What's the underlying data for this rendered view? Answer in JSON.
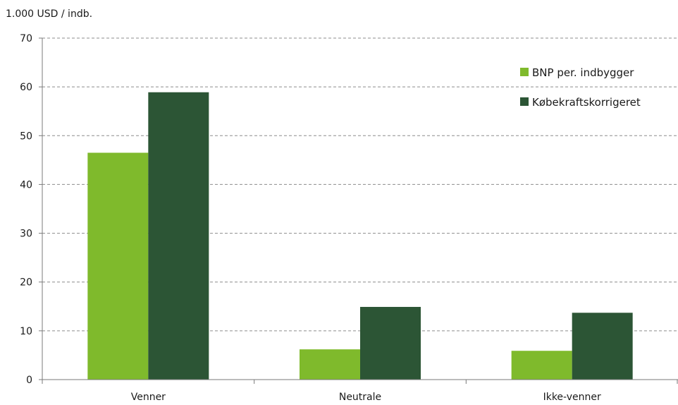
{
  "chart_data": {
    "type": "bar",
    "title": "",
    "ylabel": "1.000 USD / indb.",
    "xlabel": "",
    "categories": [
      "Venner",
      "Neutrale",
      "Ikke-venner"
    ],
    "series": [
      {
        "name": "BNP per. indbygger",
        "values": [
          46.5,
          6.2,
          5.9
        ],
        "color": "#7fba2c"
      },
      {
        "name": "Købekraftskorrigeret",
        "values": [
          58.9,
          14.9,
          13.7
        ],
        "color": "#2c5535"
      }
    ],
    "ylim": [
      0,
      70
    ],
    "yticks": [
      0,
      10,
      20,
      30,
      40,
      50,
      60,
      70
    ],
    "grid": true,
    "legend_position": "top-right"
  }
}
